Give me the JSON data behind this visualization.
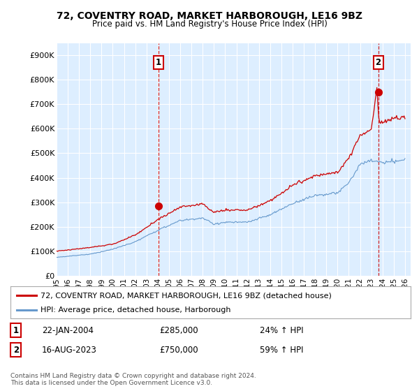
{
  "title": "72, COVENTRY ROAD, MARKET HARBOROUGH, LE16 9BZ",
  "subtitle": "Price paid vs. HM Land Registry's House Price Index (HPI)",
  "legend_line1": "72, COVENTRY ROAD, MARKET HARBOROUGH, LE16 9BZ (detached house)",
  "legend_line2": "HPI: Average price, detached house, Harborough",
  "annotation1_label": "1",
  "annotation1_date": "22-JAN-2004",
  "annotation1_price": "£285,000",
  "annotation1_hpi": "24% ↑ HPI",
  "annotation2_label": "2",
  "annotation2_date": "16-AUG-2023",
  "annotation2_price": "£750,000",
  "annotation2_hpi": "59% ↑ HPI",
  "copyright": "Contains HM Land Registry data © Crown copyright and database right 2024.\nThis data is licensed under the Open Government Licence v3.0.",
  "red_line_color": "#cc0000",
  "blue_line_color": "#6699cc",
  "vline_color": "#cc0000",
  "plot_bg_color": "#ddeeff",
  "background_color": "#ffffff",
  "grid_color": "#ffffff",
  "transaction1_year": 2004.055,
  "transaction1_price": 285000,
  "transaction2_year": 2023.62,
  "transaction2_price": 750000,
  "yticks": [
    0,
    100000,
    200000,
    300000,
    400000,
    500000,
    600000,
    700000,
    800000,
    900000
  ],
  "ytick_labels": [
    "£0",
    "£100K",
    "£200K",
    "£300K",
    "£400K",
    "£500K",
    "£600K",
    "£700K",
    "£800K",
    "£900K"
  ],
  "xlabel_years": [
    1995,
    1996,
    1997,
    1998,
    1999,
    2000,
    2001,
    2002,
    2003,
    2004,
    2005,
    2006,
    2007,
    2008,
    2009,
    2010,
    2011,
    2012,
    2013,
    2014,
    2015,
    2016,
    2017,
    2018,
    2019,
    2020,
    2021,
    2022,
    2023,
    2024,
    2025,
    2026
  ]
}
